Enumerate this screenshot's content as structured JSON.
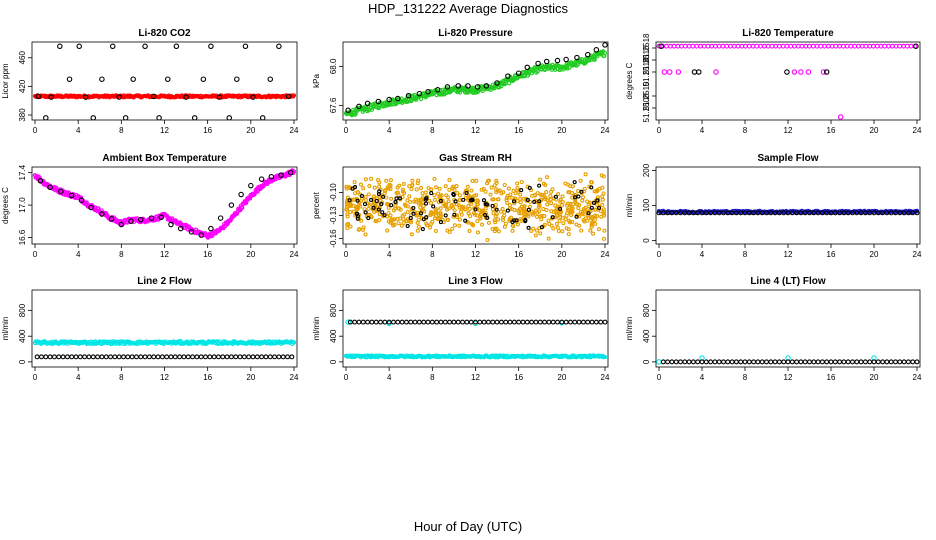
{
  "figure": {
    "title": "HDP_131222  Average Diagnostics",
    "xlabel": "Hour of Day (UTC)"
  },
  "chart_data": [
    {
      "type": "scatter",
      "title": "Li-820 CO2",
      "ylabel": "Licor ppm",
      "xlim": [
        0,
        24
      ],
      "ylim": [
        373,
        482
      ],
      "xticks": [
        "0",
        "4",
        "8",
        "12",
        "16",
        "20",
        "24"
      ],
      "yticks": [
        {
          "v": 380,
          "label": "380"
        },
        {
          "v": 420,
          "label": "420"
        },
        {
          "v": 460,
          "label": "460"
        }
      ],
      "series": [
        {
          "color": "#ff0000",
          "kind": "band",
          "x": [
            0,
            24
          ],
          "y": [
            406,
            406
          ],
          "spread": 1.5
        },
        {
          "color": "#000000",
          "kind": "points",
          "x": [
            0.3,
            1.0,
            1.5,
            2.3,
            3.2,
            4.1,
            4.7,
            5.4,
            6.2,
            7.2,
            7.8,
            8.4,
            9.1,
            10.2,
            11.0,
            11.5,
            12.3,
            13.1,
            14.0,
            14.8,
            15.6,
            16.3,
            17.1,
            18.0,
            18.7,
            19.5,
            20.2,
            21.1,
            21.8,
            22.6,
            23.5
          ],
          "y": [
            406,
            376,
            405,
            476,
            430,
            476,
            405,
            376,
            430,
            476,
            405,
            376,
            430,
            476,
            406,
            376,
            430,
            476,
            405,
            376,
            430,
            476,
            405,
            376,
            430,
            476,
            405,
            376,
            430,
            476,
            406
          ]
        }
      ]
    },
    {
      "type": "scatter",
      "title": "Li-820 Pressure",
      "ylabel": "kPa",
      "xlim": [
        0,
        24
      ],
      "ylim": [
        67.45,
        68.25
      ],
      "xticks": [
        "0",
        "4",
        "8",
        "12",
        "16",
        "20",
        "24"
      ],
      "yticks": [
        {
          "v": 67.6,
          "label": "67.6"
        },
        {
          "v": 68.0,
          "label": "68.0"
        }
      ],
      "series": [
        {
          "color": "#22cc22",
          "kind": "line",
          "x": [
            0,
            2,
            4,
            6,
            8,
            10,
            12,
            14,
            16,
            18,
            20,
            22,
            24
          ],
          "y": [
            67.51,
            67.57,
            67.63,
            67.67,
            67.72,
            67.76,
            67.76,
            67.8,
            67.9,
            67.98,
            67.99,
            68.05,
            68.14
          ],
          "spread": 0.03
        },
        {
          "color": "#000000",
          "kind": "points",
          "x": [
            0.2,
            1.2,
            2.0,
            3.0,
            4.0,
            4.8,
            5.8,
            6.8,
            7.6,
            8.5,
            9.4,
            10.4,
            11.3,
            12.2,
            13.0,
            14.0,
            15.0,
            16.0,
            16.8,
            17.8,
            18.6,
            19.6,
            20.4,
            21.4,
            22.4,
            23.2,
            24.0
          ],
          "y": [
            67.55,
            67.59,
            67.62,
            67.64,
            67.66,
            67.67,
            67.7,
            67.72,
            67.74,
            67.76,
            67.79,
            67.8,
            67.8,
            67.79,
            67.8,
            67.83,
            67.9,
            67.93,
            67.99,
            68.03,
            68.05,
            68.06,
            68.07,
            68.09,
            68.12,
            68.17,
            68.22
          ]
        }
      ]
    },
    {
      "type": "scatter",
      "title": "Li-820 Temperature",
      "ylabel": "degrees C",
      "xlim": [
        0,
        24
      ],
      "ylim": [
        51.2506,
        51.2519
      ],
      "xticks": [
        "0",
        "4",
        "8",
        "12",
        "16",
        "20",
        "24"
      ],
      "yticks": [
        {
          "v": 51.2508,
          "label": "51.2508"
        },
        {
          "v": 51.251,
          "label": "51.2510"
        },
        {
          "v": 51.2514,
          "label": "51.2514"
        },
        {
          "v": 51.2516,
          "label": "51.2516"
        },
        {
          "v": 51.2518,
          "label": "51.2518"
        }
      ],
      "series": [
        {
          "color": "#ff00ff",
          "kind": "points",
          "x": [
            0.5,
            1.0,
            1.8,
            5.3,
            12.6,
            13.2,
            13.9,
            15.3,
            16.9
          ],
          "y": [
            51.2514,
            51.2514,
            51.2514,
            51.2514,
            51.2514,
            51.2514,
            51.2514,
            51.2514,
            51.25065
          ]
        },
        {
          "color": "#ff00ff",
          "kind": "row",
          "x": [
            0,
            24
          ],
          "y": [
            51.25183,
            51.25183
          ],
          "step": 0.35
        },
        {
          "color": "#000000",
          "kind": "points",
          "x": [
            0.2,
            3.3,
            3.7,
            11.9,
            15.6,
            23.9
          ],
          "y": [
            51.25183,
            51.2514,
            51.2514,
            51.2514,
            51.2514,
            51.25183
          ]
        }
      ]
    },
    {
      "type": "scatter",
      "title": "Ambient Box Temperature",
      "ylabel": "degrees C",
      "xlim": [
        0,
        24
      ],
      "ylim": [
        16.52,
        17.47
      ],
      "xticks": [
        "0",
        "4",
        "8",
        "12",
        "16",
        "20",
        "24"
      ],
      "yticks": [
        {
          "v": 16.6,
          "label": "16.6"
        },
        {
          "v": 17.0,
          "label": "17.0"
        },
        {
          "v": 17.4,
          "label": "17.4"
        }
      ],
      "series": [
        {
          "color": "#ff00ff",
          "kind": "line",
          "x": [
            0,
            1,
            2,
            3,
            4,
            5,
            6,
            7,
            8,
            9,
            10,
            11,
            12,
            13,
            14,
            15,
            16,
            17,
            18,
            19,
            20,
            21,
            22,
            23,
            24
          ],
          "y": [
            17.37,
            17.26,
            17.19,
            17.14,
            17.1,
            17.0,
            16.93,
            16.84,
            16.78,
            16.82,
            16.81,
            16.83,
            16.87,
            16.79,
            16.73,
            16.67,
            16.62,
            16.68,
            16.8,
            16.96,
            17.11,
            17.24,
            17.32,
            17.36,
            17.42
          ],
          "spread": 0.025
        },
        {
          "color": "#000000",
          "kind": "points",
          "x": [
            0.5,
            1.4,
            2.4,
            3.4,
            4.3,
            5.2,
            6.2,
            7.1,
            8.0,
            8.9,
            9.8,
            10.8,
            11.7,
            12.6,
            13.5,
            14.5,
            15.4,
            16.3,
            17.2,
            18.2,
            19.1,
            20.0,
            21.0,
            21.9,
            22.8,
            23.7
          ],
          "y": [
            17.3,
            17.22,
            17.17,
            17.12,
            17.06,
            16.97,
            16.89,
            16.83,
            16.76,
            16.8,
            16.82,
            16.84,
            16.85,
            16.76,
            16.71,
            16.67,
            16.63,
            16.71,
            16.84,
            17.0,
            17.13,
            17.24,
            17.32,
            17.35,
            17.37,
            17.4
          ]
        }
      ]
    },
    {
      "type": "scatter",
      "title": "Gas Stream RH",
      "ylabel": "percent",
      "xlim": [
        0,
        24
      ],
      "ylim": [
        -0.167,
        -0.067
      ],
      "xticks": [
        "0",
        "4",
        "8",
        "12",
        "16",
        "20",
        "24"
      ],
      "yticks": [
        {
          "v": -0.16,
          "label": "-0.16"
        },
        {
          "v": -0.13,
          "label": "-0.13"
        },
        {
          "v": -0.1,
          "label": "-0.10"
        }
      ],
      "series": [
        {
          "color": "#e6a000",
          "kind": "noise",
          "x": [
            0,
            24
          ],
          "y": [
            -0.119,
            -0.119
          ],
          "spread": 0.026,
          "count": 700
        },
        {
          "color": "#000000",
          "kind": "noise",
          "x": [
            0,
            24
          ],
          "y": [
            -0.119,
            -0.119
          ],
          "spread": 0.02,
          "count": 90
        }
      ]
    },
    {
      "type": "scatter",
      "title": "Sample Flow",
      "ylabel": "ml/min",
      "xlim": [
        0,
        24
      ],
      "ylim": [
        -10,
        210
      ],
      "xticks": [
        "0",
        "4",
        "8",
        "12",
        "16",
        "20",
        "24"
      ],
      "yticks": [
        {
          "v": 0,
          "label": "0"
        },
        {
          "v": 100,
          "label": "100"
        },
        {
          "v": 200,
          "label": "200"
        }
      ],
      "series": [
        {
          "color": "#1b1bc8",
          "kind": "band",
          "x": [
            0,
            24
          ],
          "y": [
            82,
            82
          ],
          "spread": 3
        },
        {
          "color": "#000000",
          "kind": "row",
          "x": [
            0,
            24
          ],
          "y": [
            79,
            79
          ],
          "step": 0.4
        }
      ]
    },
    {
      "type": "scatter",
      "title": "Line 2 Flow",
      "ylabel": "ml/min",
      "xlim": [
        0,
        24
      ],
      "ylim": [
        -80,
        1120
      ],
      "xticks": [
        "0",
        "4",
        "8",
        "12",
        "16",
        "20",
        "24"
      ],
      "yticks": [
        {
          "v": 0,
          "label": "0"
        },
        {
          "v": 400,
          "label": "400"
        },
        {
          "v": 800,
          "label": "800"
        }
      ],
      "series": [
        {
          "color": "#00e5e5",
          "kind": "band",
          "x": [
            0,
            24
          ],
          "y": [
            300,
            300
          ],
          "spread": 22
        },
        {
          "color": "#000000",
          "kind": "row",
          "x": [
            0.2,
            24
          ],
          "y": [
            78,
            78
          ],
          "step": 0.4
        }
      ]
    },
    {
      "type": "scatter",
      "title": "Line 3 Flow",
      "ylabel": "ml/min",
      "xlim": [
        0,
        24
      ],
      "ylim": [
        -80,
        1120
      ],
      "xticks": [
        "0",
        "4",
        "8",
        "12",
        "16",
        "20",
        "24"
      ],
      "yticks": [
        {
          "v": 0,
          "label": "0"
        },
        {
          "v": 400,
          "label": "400"
        },
        {
          "v": 800,
          "label": "800"
        }
      ],
      "series": [
        {
          "color": "#00e5e5",
          "kind": "band",
          "x": [
            0,
            24
          ],
          "y": [
            85,
            85
          ],
          "spread": 15
        },
        {
          "color": "#00e5e5",
          "kind": "points",
          "x": [
            0.2,
            4.0,
            12.0,
            20.0
          ],
          "y": [
            620,
            600,
            600,
            610
          ]
        },
        {
          "color": "#000000",
          "kind": "row",
          "x": [
            0.4,
            24
          ],
          "y": [
            620,
            620
          ],
          "step": 0.4
        }
      ]
    },
    {
      "type": "scatter",
      "title": "Line 4 (LT) Flow",
      "ylabel": "ml/min",
      "xlim": [
        0,
        24
      ],
      "ylim": [
        -80,
        1120
      ],
      "xticks": [
        "0",
        "4",
        "8",
        "12",
        "16",
        "20",
        "24"
      ],
      "yticks": [
        {
          "v": 0,
          "label": "0"
        },
        {
          "v": 400,
          "label": "400"
        },
        {
          "v": 800,
          "label": "800"
        }
      ],
      "series": [
        {
          "color": "#00e5e5",
          "kind": "points",
          "x": [
            0,
            4.0,
            12.0,
            20.0
          ],
          "y": [
            0,
            60,
            60,
            60
          ]
        },
        {
          "color": "#000000",
          "kind": "row",
          "x": [
            0.4,
            24
          ],
          "y": [
            0,
            0
          ],
          "step": 0.4
        }
      ]
    }
  ]
}
